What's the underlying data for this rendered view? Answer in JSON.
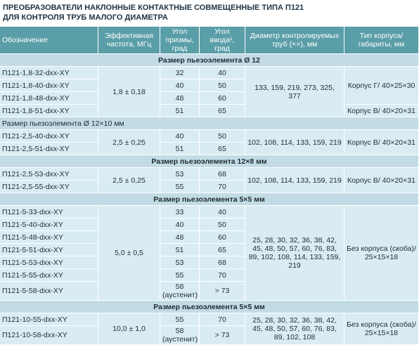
{
  "title": [
    "ПРЕОБРАЗОВАТЕЛИ НАКЛОННЫЕ КОНТАКТНЫЕ СОВМЕЩЕННЫЕ ТИПА П121",
    "ДЛЯ КОНТРОЛЯ ТРУБ МАЛОГО ДИАМЕТРА"
  ],
  "table": {
    "header": [
      "Обозначение",
      "Эффективная частота, МГц",
      "Угол призмы, град",
      "Угол ввода¹, град",
      "Диаметр контролируемых труб (××), мм",
      "Тип корпуса/ габариты, мм"
    ],
    "sections": [
      {
        "title": "Размер пьезоэлемента Ø 12",
        "rows": [
          [
            "П121-1,8-32-dxx-XY",
            "32",
            "40"
          ],
          [
            "П121-1,8-40-dxx-XY",
            "40",
            "50"
          ],
          [
            "П121-1,8-48-dxx-XY",
            "48",
            "60"
          ],
          [
            "П121-1,8-51-dxx-XY",
            "51",
            "65"
          ]
        ],
        "frequency": "1,8 ± 0,18",
        "diameters": "133, 159, 219, 273, 325, 377",
        "body": [
          "Корпус Г/ 40×25×30",
          "Корпус В/ 40×20×31"
        ]
      },
      {
        "title": "Размер пьезоэлемента Ø 12×10 мм",
        "rows": [
          [
            "П121-2,5-40-dxx-XY",
            "40",
            "50"
          ],
          [
            "П121-2,5-51-dxx-XY",
            "51",
            "65"
          ]
        ],
        "frequency": "2,5 ± 0,25",
        "diameters": "102, 108, 114, 133, 159, 219",
        "body": [
          "Корпус В/ 40×20×31"
        ]
      },
      {
        "title": "Размер пьезоэлемента 12×8 мм",
        "rows": [
          [
            "П121-2,5-53-dxx-XY",
            "53",
            "68"
          ],
          [
            "П121-2,5-55-dxx-XY",
            "55",
            "70"
          ]
        ],
        "frequency": "2,5 ± 0,25",
        "diameters": "102, 108, 114, 133, 159, 219",
        "body": [
          "Корпус В/ 40×20×31"
        ]
      },
      {
        "title": "Размер пьезоэлемента 5×5 мм",
        "rows": [
          [
            "П121-5-33-dxx-XY",
            "33",
            "40"
          ],
          [
            "П121-5-40-dxx-XY",
            "40",
            "50"
          ],
          [
            "П121-5-48-dxx-XY",
            "48",
            "60"
          ],
          [
            "П121-5-51-dxx-XY",
            "51",
            "65"
          ],
          [
            "П121-5-53-dxx-XY",
            "53",
            "68"
          ],
          [
            "П121-5-55-dxx-XY",
            "55",
            "70"
          ],
          [
            "П121-5-58-dxx-XY",
            "58 (аустенит)",
            "> 73"
          ]
        ],
        "frequency": "5,0 ± 0,5",
        "diameters": "25, 28, 30, 32, 36, 38, 42, 45, 48, 50, 57, 60, 76, 83, 89, 102, 108, 114, 133, 159, 219",
        "body": [
          "Без корпуса (скоба)/ 25×15×18"
        ]
      },
      {
        "title": "Размер пьезоэлемента 5×5 мм",
        "rows": [
          [
            "П121-10-55-dxx-XY",
            "55",
            "70"
          ],
          [
            "П121-10-58-dxx-XY",
            "58 (аустенит)",
            "> 73"
          ]
        ],
        "frequency": "10,0 ± 1,0",
        "diameters": "25, 28, 30, 32, 36, 38, 42, 45, 48, 50, 57, 60, 76, 83, 89, 102, 108",
        "body": [
          "Без корпуса (скоба)/ 25×15×18"
        ]
      }
    ]
  }
}
